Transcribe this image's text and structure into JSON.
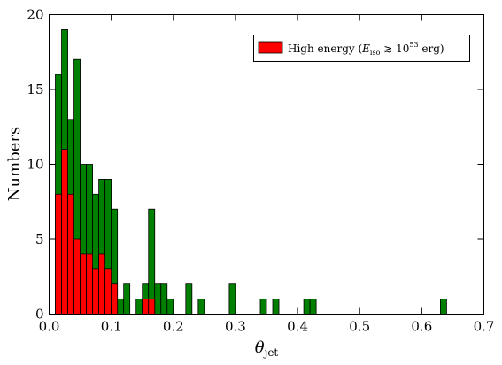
{
  "chart_data": {
    "type": "bar",
    "ylabel": "Numbers",
    "xlabel_symbol": "θ",
    "xlabel_subscript": "jet",
    "xlim": [
      0.0,
      0.7
    ],
    "ylim": [
      0,
      20
    ],
    "xticks": [
      "0.0",
      "0.1",
      "0.2",
      "0.3",
      "0.4",
      "0.5",
      "0.6",
      "0.7"
    ],
    "yticks": [
      "0",
      "5",
      "10",
      "15",
      "20"
    ],
    "bin_width": 0.01,
    "legend": {
      "placement": "top-right",
      "entries": [
        {
          "prefix": "High energy (",
          "var": "E",
          "var_sub": "iso",
          "relation": " ≳ 10",
          "exp": "53",
          "suffix": " erg)",
          "color": "#ff0000"
        }
      ]
    },
    "series": [
      {
        "color": "#008000",
        "bins_left": [
          0.01,
          0.02,
          0.03,
          0.04,
          0.05,
          0.06,
          0.07,
          0.08,
          0.09,
          0.1,
          0.11,
          0.12,
          0.13,
          0.14,
          0.15,
          0.16,
          0.17,
          0.18,
          0.19,
          0.22,
          0.24,
          0.29,
          0.34,
          0.36,
          0.41,
          0.42,
          0.63
        ],
        "values": [
          16,
          19,
          13,
          17,
          10,
          10,
          8,
          9,
          9,
          7,
          1,
          2,
          0,
          1,
          2,
          7,
          2,
          2,
          1,
          2,
          1,
          2,
          1,
          1,
          1,
          1,
          1
        ]
      },
      {
        "color": "#ff0000",
        "bins_left": [
          0.01,
          0.02,
          0.03,
          0.04,
          0.05,
          0.06,
          0.07,
          0.08,
          0.09,
          0.1,
          0.11,
          0.12,
          0.13,
          0.14,
          0.15,
          0.16,
          0.17,
          0.18,
          0.19,
          0.22,
          0.24,
          0.29,
          0.34,
          0.36,
          0.41,
          0.42,
          0.63
        ],
        "values": [
          8,
          11,
          8,
          5,
          4,
          4,
          3,
          4,
          3,
          2,
          0,
          0,
          0,
          0,
          1,
          1,
          0,
          0,
          0,
          0,
          0,
          0,
          0,
          0,
          0,
          0,
          0
        ]
      }
    ]
  }
}
